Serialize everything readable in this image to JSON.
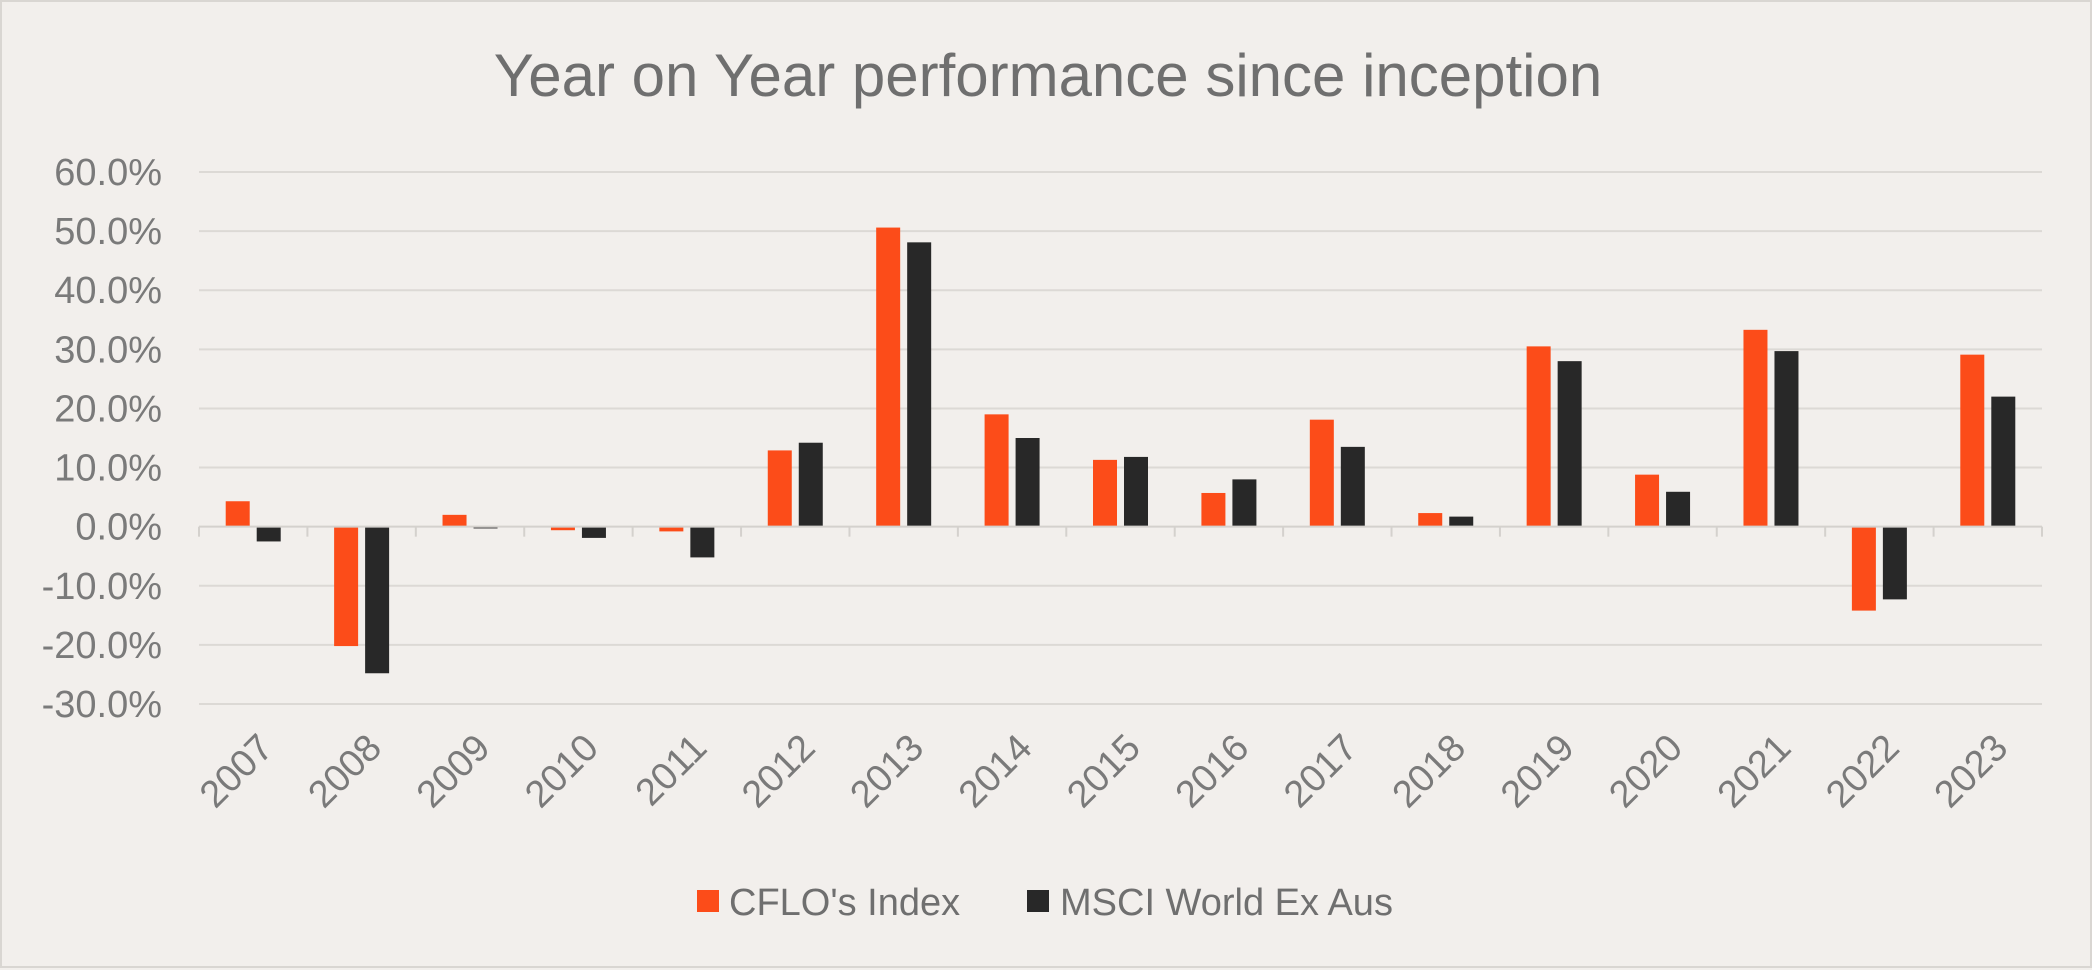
{
  "chart_data": {
    "type": "bar",
    "title": "Year on Year performance since inception",
    "xlabel": "",
    "ylabel": "",
    "categories": [
      "2007",
      "2008",
      "2009",
      "2010",
      "2011",
      "2012",
      "2013",
      "2014",
      "2015",
      "2016",
      "2017",
      "2018",
      "2019",
      "2020",
      "2021",
      "2022",
      "2023"
    ],
    "series": [
      {
        "name": "CFLO's Index",
        "color": "#fc4c19",
        "values": [
          4.3,
          -20.2,
          2.0,
          -0.6,
          -0.8,
          12.9,
          50.6,
          19.0,
          11.3,
          5.7,
          18.1,
          2.3,
          30.5,
          8.8,
          33.3,
          -14.2,
          29.1
        ]
      },
      {
        "name": "MSCI World Ex Aus",
        "color": "#282828",
        "values": [
          -2.5,
          -24.8,
          -0.3,
          -1.9,
          -5.2,
          14.2,
          48.1,
          15.0,
          11.8,
          8.0,
          13.5,
          1.7,
          28.0,
          5.9,
          29.7,
          -12.3,
          22.0
        ]
      }
    ],
    "ylim": [
      -30,
      60
    ],
    "yticks": [
      "60.0%",
      "50.0%",
      "40.0%",
      "30.0%",
      "20.0%",
      "10.0%",
      "0.0%",
      "-10.0%",
      "-20.0%",
      "-30.0%"
    ],
    "ytick_values": [
      60,
      50,
      40,
      30,
      20,
      10,
      0,
      -10,
      -20,
      -30
    ],
    "grid": true,
    "legend_position": "bottom"
  }
}
